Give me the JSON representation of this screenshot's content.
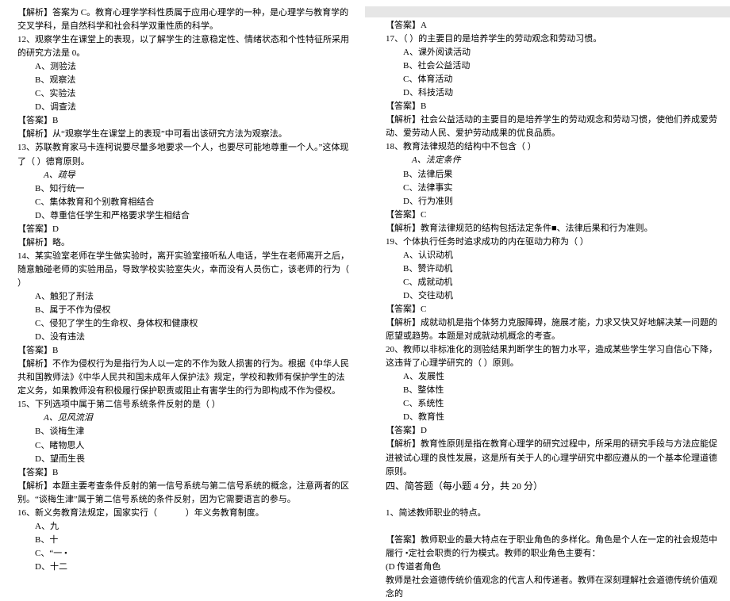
{
  "left": {
    "p1": "【解析】答案为 C。教育心理学学科性质属于应用心理学的一种，是心理学与教育学的交叉学科，是自然科学和社会科学双重性质的科学。",
    "q12": "12、观察学生在课堂上的表现，以了解学生的注意稳定性、情绪状态和个性特征所采用的研究方法是 0。",
    "q12a": "A、测验法",
    "q12b": "B、观察法",
    "q12c": "C、实验法",
    "q12d": "D、调查法",
    "a12": "【答案】B",
    "e12": "【解析】从“观察学生在课堂上的表现”中可看出该研究方法为观察法。",
    "q13": "13、苏联教育家马卡连柯说要尽量多地要求一个人，也要尽可能地尊重一个人。”这体现了（   ）德育原则。",
    "q13a": "A、疏导",
    "q13b": "B、知行统一",
    "q13c": "C、集体教育和个别教育相结合",
    "q13d": "D、尊重信任学生和严格要求学生相结合",
    "a13": "【答案】D",
    "e13": "【解析】略。",
    "q14": "14、某实验室老师在学生做实验时，离开实验室接听私人电话，学生在老师离开之后，随意触碰老师的实验用品，导致学校实验室失火，幸而没有人员伤亡，该老师的行为（   ）",
    "q14a": "A、触犯了刑法",
    "q14b": "B、属于不作为侵权",
    "q14c": "C、侵犯了学生的生命权、身体权和健康权",
    "q14d": "D、没有违法",
    "a14": "【答案】B",
    "e14": "【解析】不作为侵权行为是指行为人以一定的不作为致人损害的行为。根据《中华人民共和国教师法》《中华人民共和国未成年人保护法》规定，学校和教师有保护学生的法定义务，如果教师没有积极履行保护职责或阻止有害学生的行为即构成不作为侵权。",
    "q15": "15、下列选项中属于第二信号系统条件反射的是（   ）",
    "q15a": "A、见风流泪",
    "q15b": "B、谈梅生津",
    "q15c": "C、睹物思人",
    "q15d": "D、望而生畏",
    "a15": "【答案】B",
    "e15": "【解析】本题主要考查条件反射的第一信号系统与第二信号系统的概念，注意两者的区别。“谈梅生津”属于第二信号系统的条件反射，因为它需要语言的参与。",
    "q16": "16、新义务教育法规定，国家实行（   　　　）年义务教育制度。",
    "q16a": "A、九",
    "q16b": "B、十",
    "q16c": "C、“一 •",
    "q16d": "D、十二"
  },
  "right": {
    "a16": "【答案】A",
    "q17": "17、（   ）的主要目的是培养学生的劳动观念和劳动习惯。",
    "q17a": "A、课外阅读活动",
    "q17b": "B、社会公益活动",
    "q17c": "C、体育活动",
    "q17d": "D、科技活动",
    "a17": "【答案】B",
    "e17": "【解析】社会公益活动的主要目的是培养学生的劳动观念和劳动习惯，使他们养成爱劳动、爱劳动人民、爱护劳动成果的优良品质。",
    "q18": "18、教育法律规范的结构中不包含（   ）",
    "q18a": "A、法定条件",
    "q18b": "B、法律后果",
    "q18c": "C、法律事实",
    "q18d": "D、行为准则",
    "a18": "【答案】C",
    "e18": "【解析】教育法律规范的结构包括法定条件■、法律后果和行为准则。",
    "q19": "19、个体执行任务时追求成功的内在驱动力称为（   ）",
    "q19a": "A、认识动机",
    "q19b": "B、赞许动机",
    "q19c": "C、成就动机",
    "q19d": "D、交往动机",
    "a19": "【答案】C",
    "e19": "【解析】成就动机是指个体努力克服障碍，施展才能，力求又快又好地解决某一问题的愿望或趋势。本题是对成就动机概念的考查。",
    "q20": "20、教师以非标准化的测验结果判断学生的智力水平，造成某些学生学习自信心下降，这违背了心理学研究的（   ）原则。",
    "q20a": "A、发展性",
    "q20b": "B、整体性",
    "q20c": "C、系统性",
    "q20d": "D、教育性",
    "a20": "【答案】D",
    "e20": "【解析】教育性原则是指在教育心理学的研究过程中，所采用的研究手段与方法应能促进被试心理的良性发展，这是所有关于人的心理学研究中都应遵从的一个基本伦理道德原则。",
    "section4": "四、简答题（每小题 4 分，共 20 分）",
    "sq1": "1、简述教师职业的特点。",
    "sa1": "【答案】教师职业的最大特点在于职业角色的多样化。角色是个人在一定的社会规范中履行 •定社会职责的行为模式。教师的职业角色主要有：",
    "sa1b": "(D 传道者角色",
    "sa1c": "教师是社会道德传统价值观念的代言人和传递者。教师在深刻理解社会道德传统价值观念的"
  }
}
